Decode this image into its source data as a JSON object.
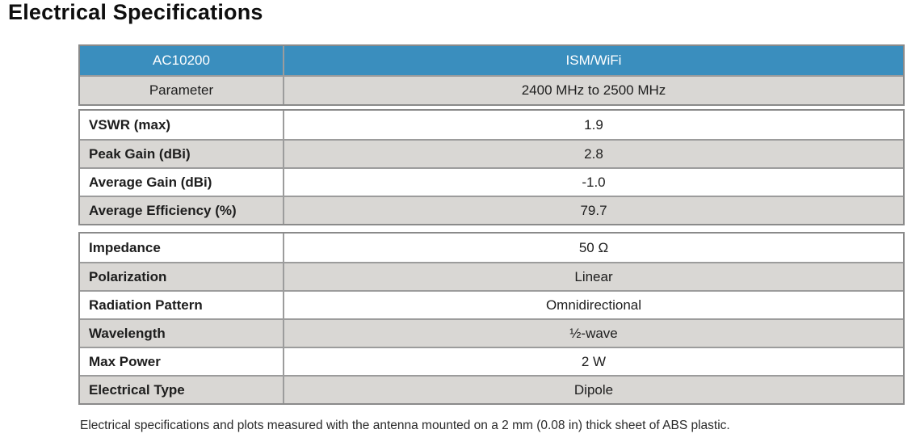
{
  "page": {
    "title": "Electrical Specifications",
    "footnote": "Electrical specifications and plots measured with the antenna mounted on a 2 mm (0.08 in) thick sheet of ABS plastic."
  },
  "colors": {
    "header_blue": "#3a8ebe",
    "row_gray": "#d9d7d4",
    "row_white": "#ffffff",
    "border_outer": "#8a8a8a",
    "border_inner": "#9c9c9c",
    "header_text": "#ffffff",
    "body_text": "#1d1d1d"
  },
  "table": {
    "header": {
      "model": "AC10200",
      "band": "ISM/WiFi"
    },
    "subheader": {
      "label": "Parameter",
      "value": "2400 MHz to 2500 MHz"
    },
    "rf_rows": [
      {
        "label": "VSWR (max)",
        "value": "1.9"
      },
      {
        "label": "Peak Gain (dBi)",
        "value": "2.8"
      },
      {
        "label": "Average Gain (dBi)",
        "value": "-1.0"
      },
      {
        "label": "Average Efficiency (%)",
        "value": "79.7"
      }
    ],
    "general_rows": [
      {
        "label": "Impedance",
        "value": "50 Ω"
      },
      {
        "label": "Polarization",
        "value": "Linear"
      },
      {
        "label": "Radiation Pattern",
        "value": "Omnidirectional"
      },
      {
        "label": "Wavelength",
        "value": "½-wave"
      },
      {
        "label": "Max Power",
        "value": "2 W"
      },
      {
        "label": "Electrical Type",
        "value": "Dipole"
      }
    ]
  }
}
